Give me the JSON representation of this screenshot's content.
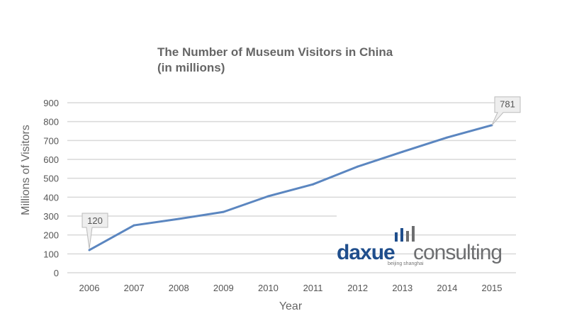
{
  "chart_data": {
    "type": "line",
    "title": "The Number of Museum Visitors in China",
    "subtitle": "(in millions)",
    "xlabel": "Year",
    "ylabel": "Millions of Visitors",
    "categories": [
      "2006",
      "2007",
      "2008",
      "2009",
      "2010",
      "2011",
      "2012",
      "2013",
      "2014",
      "2015"
    ],
    "series": [
      {
        "name": "Museum Visitors",
        "values": [
          120,
          251,
          285,
          322,
          405,
          468,
          562,
          640,
          716,
          781
        ],
        "color": "#5b86c0"
      }
    ],
    "ylim": [
      0,
      900
    ],
    "yticks": [
      0,
      100,
      200,
      300,
      400,
      500,
      600,
      700,
      800,
      900
    ],
    "grid": true,
    "annotations": [
      {
        "category": "2006",
        "label": "120"
      },
      {
        "category": "2015",
        "label": "781"
      }
    ]
  },
  "watermark": {
    "brand_left": "daxue",
    "brand_right": "consulting",
    "tagline": "beijing shanghai",
    "color_left": "#1f4e8c",
    "color_right": "#6d6e70"
  }
}
